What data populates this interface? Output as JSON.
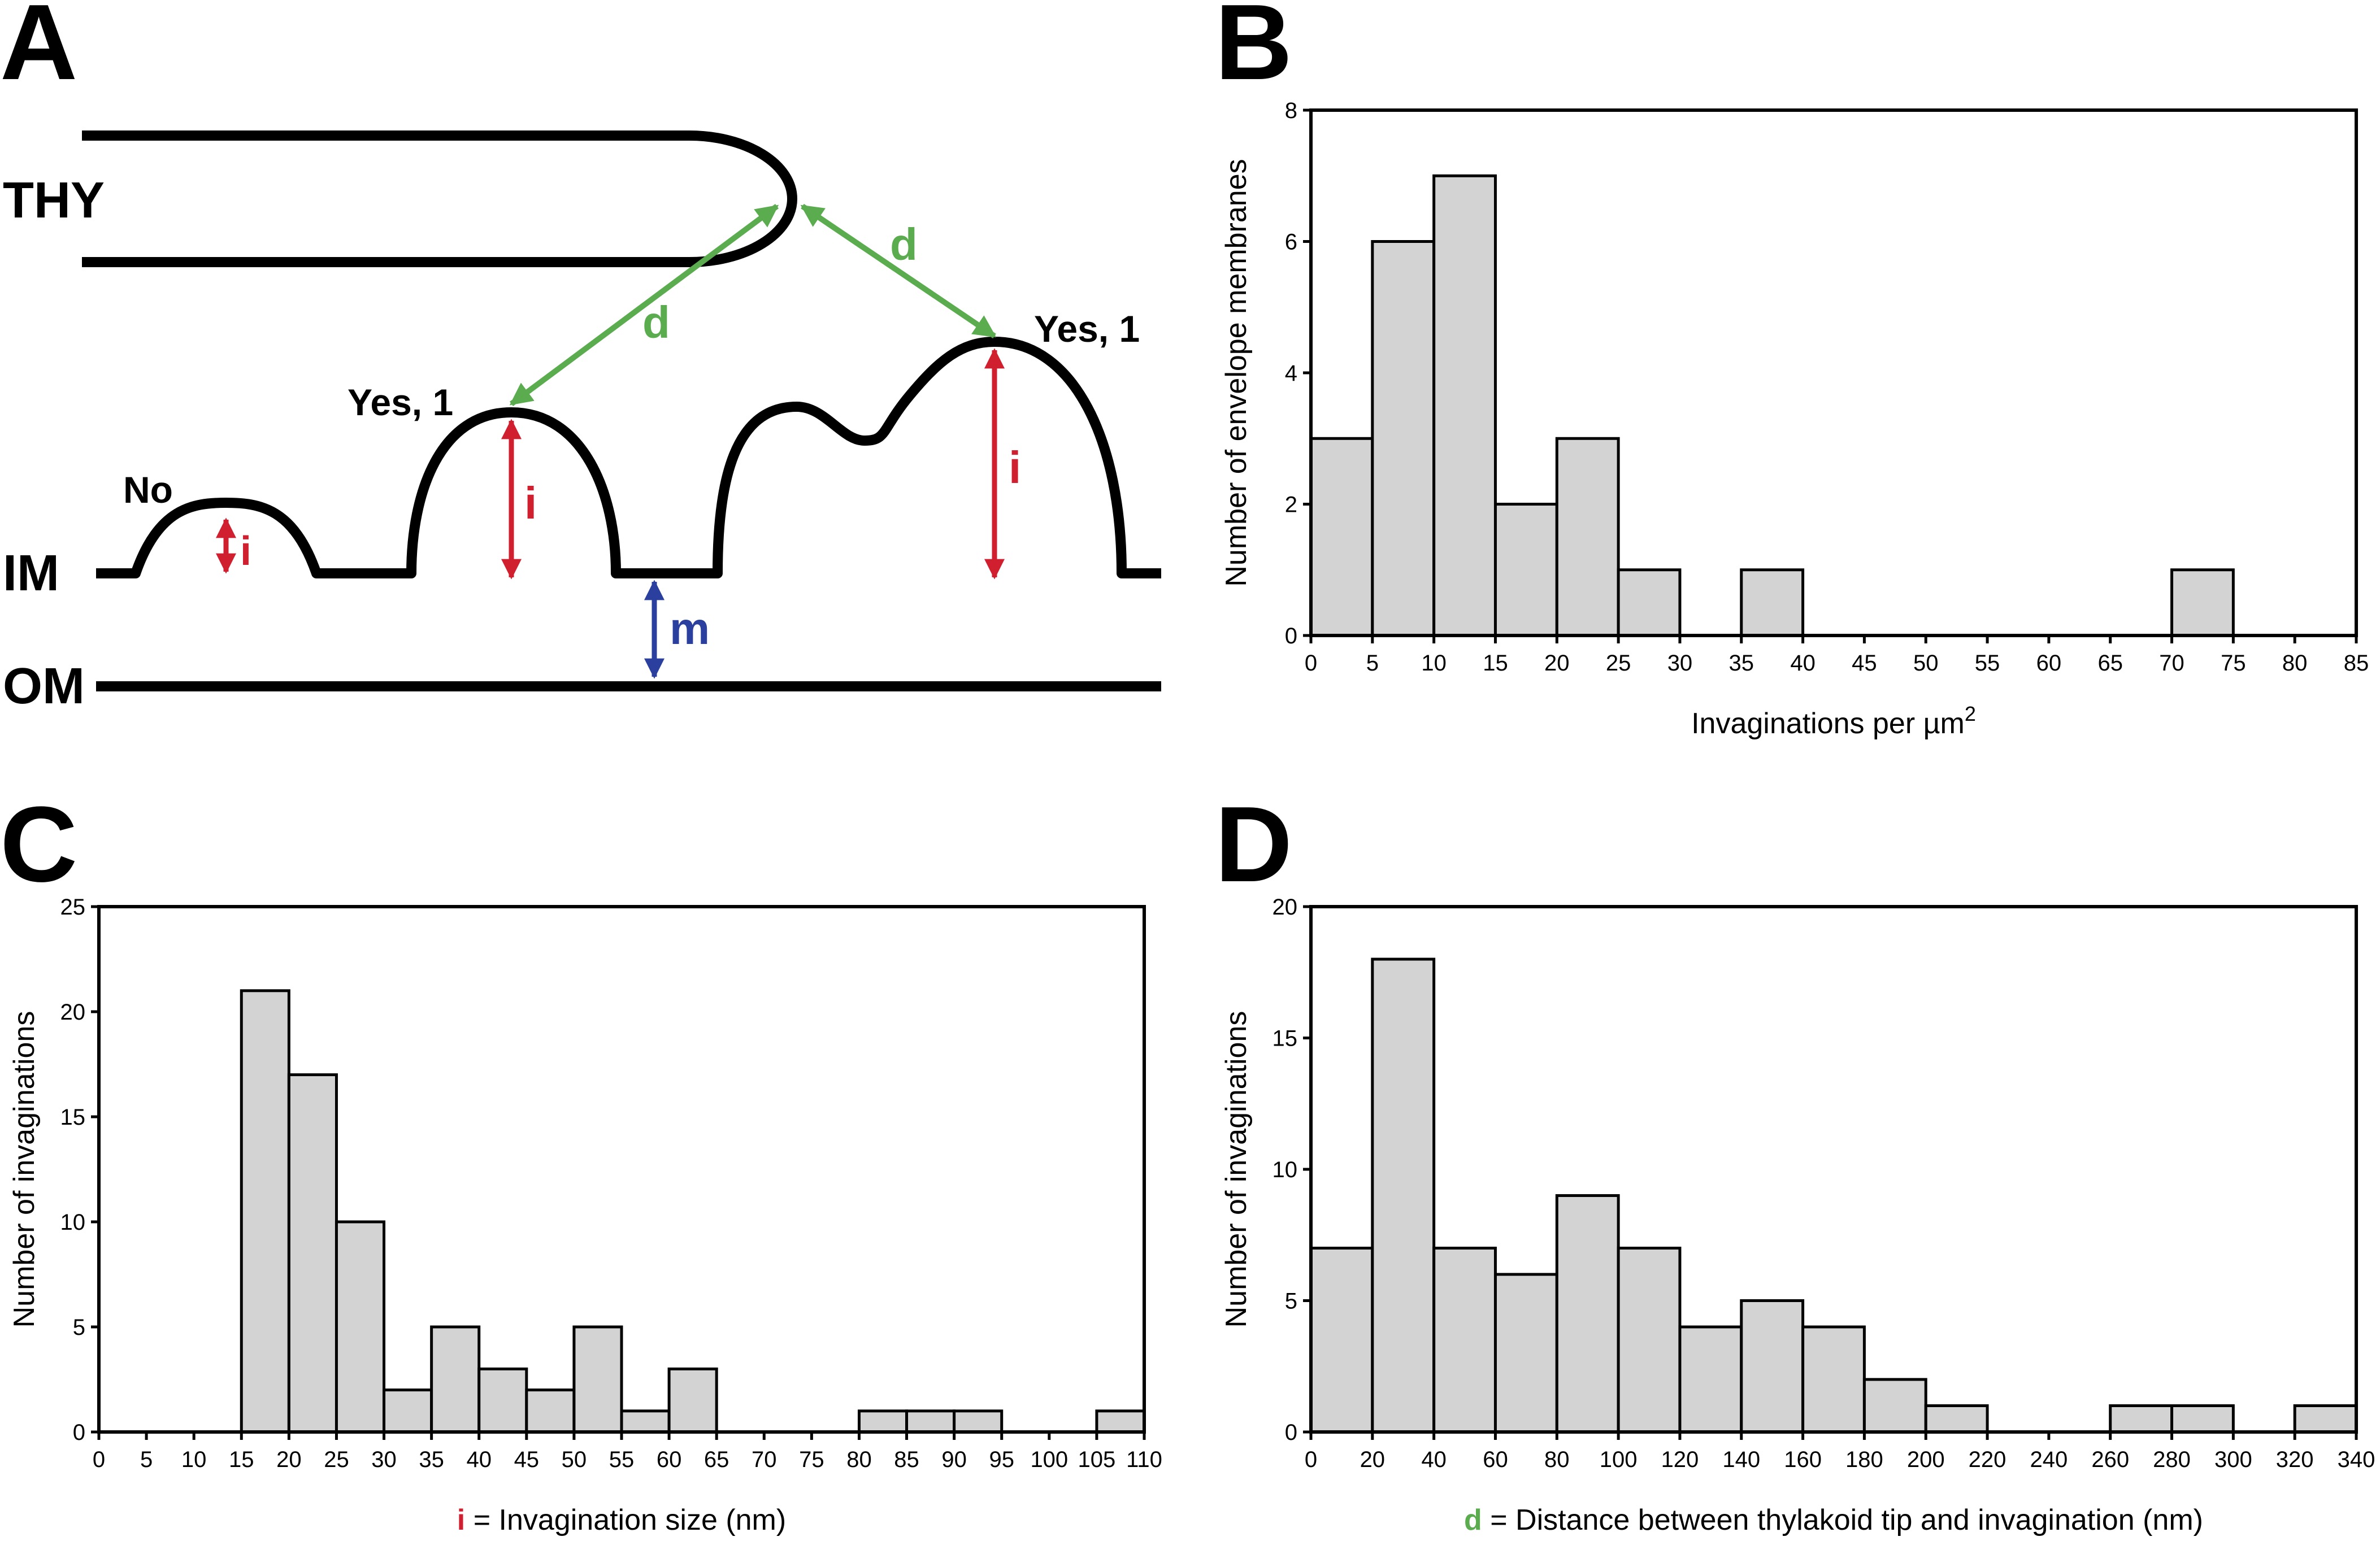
{
  "panels": {
    "a": "A",
    "b": "B",
    "c": "C",
    "d": "D"
  },
  "diagram": {
    "thy_label": "THY",
    "im_label": "IM",
    "om_label": "OM",
    "no_label": "No",
    "yes_left_label": "Yes, 1",
    "yes_right_label": "Yes, 1",
    "d_label_left": "d",
    "d_label_right": "d",
    "i_label_small": "i",
    "i_label_mid": "i",
    "i_label_large": "i",
    "m_label": "m",
    "colors": {
      "green": "#5aac4e",
      "red": "#d02030",
      "blue": "#2a3f9e"
    }
  },
  "chart_data": [
    {
      "id": "B",
      "type": "bar",
      "title": "",
      "xlabel": "Invaginations per µm",
      "xlabel_sup": "2",
      "ylabel": "Number of envelope membranes",
      "bin_width": 5,
      "x_ticks": [
        "0",
        "5",
        "10",
        "15",
        "20",
        "25",
        "30",
        "35",
        "40",
        "45",
        "50",
        "55",
        "60",
        "65",
        "70",
        "75",
        "80",
        "85"
      ],
      "y_ticks": [
        "0",
        "2",
        "4",
        "6",
        "8"
      ],
      "xlim": [
        0,
        85
      ],
      "ylim": [
        0,
        8
      ],
      "bins": [
        {
          "start": 0,
          "value": 3
        },
        {
          "start": 5,
          "value": 6
        },
        {
          "start": 10,
          "value": 7
        },
        {
          "start": 15,
          "value": 2
        },
        {
          "start": 20,
          "value": 3
        },
        {
          "start": 25,
          "value": 1
        },
        {
          "start": 35,
          "value": 1
        },
        {
          "start": 70,
          "value": 1
        }
      ]
    },
    {
      "id": "C",
      "type": "bar",
      "title": "",
      "xlabel_prefix": "i",
      "xlabel": " = Invagination size (nm)",
      "ylabel": "Number of invaginations",
      "bin_width": 5,
      "x_ticks": [
        "0",
        "5",
        "10",
        "15",
        "20",
        "25",
        "30",
        "35",
        "40",
        "45",
        "50",
        "55",
        "60",
        "65",
        "70",
        "75",
        "80",
        "85",
        "90",
        "95",
        "100",
        "105",
        "110"
      ],
      "y_ticks": [
        "0",
        "5",
        "10",
        "15",
        "20",
        "25"
      ],
      "xlim": [
        0,
        110
      ],
      "ylim": [
        0,
        25
      ],
      "bins": [
        {
          "start": 15,
          "value": 21
        },
        {
          "start": 20,
          "value": 17
        },
        {
          "start": 25,
          "value": 10
        },
        {
          "start": 30,
          "value": 2
        },
        {
          "start": 35,
          "value": 5
        },
        {
          "start": 40,
          "value": 3
        },
        {
          "start": 45,
          "value": 2
        },
        {
          "start": 50,
          "value": 5
        },
        {
          "start": 55,
          "value": 1
        },
        {
          "start": 60,
          "value": 3
        },
        {
          "start": 80,
          "value": 1
        },
        {
          "start": 85,
          "value": 1
        },
        {
          "start": 90,
          "value": 1
        },
        {
          "start": 105,
          "value": 1
        }
      ]
    },
    {
      "id": "D",
      "type": "bar",
      "title": "",
      "xlabel_prefix": "d",
      "xlabel": " = Distance between thylakoid tip and invagination (nm)",
      "ylabel": "Number of invaginations",
      "bin_width": 20,
      "x_ticks": [
        "0",
        "20",
        "40",
        "60",
        "80",
        "100",
        "120",
        "140",
        "160",
        "180",
        "200",
        "220",
        "240",
        "260",
        "280",
        "300",
        "320",
        "340"
      ],
      "y_ticks": [
        "0",
        "5",
        "10",
        "15",
        "20"
      ],
      "xlim": [
        0,
        340
      ],
      "ylim": [
        0,
        20
      ],
      "bins": [
        {
          "start": 0,
          "value": 7
        },
        {
          "start": 20,
          "value": 18
        },
        {
          "start": 40,
          "value": 7
        },
        {
          "start": 60,
          "value": 6
        },
        {
          "start": 80,
          "value": 9
        },
        {
          "start": 100,
          "value": 7
        },
        {
          "start": 120,
          "value": 4
        },
        {
          "start": 140,
          "value": 5
        },
        {
          "start": 160,
          "value": 4
        },
        {
          "start": 180,
          "value": 2
        },
        {
          "start": 200,
          "value": 1
        },
        {
          "start": 260,
          "value": 1
        },
        {
          "start": 280,
          "value": 1
        },
        {
          "start": 320,
          "value": 1
        }
      ]
    }
  ]
}
